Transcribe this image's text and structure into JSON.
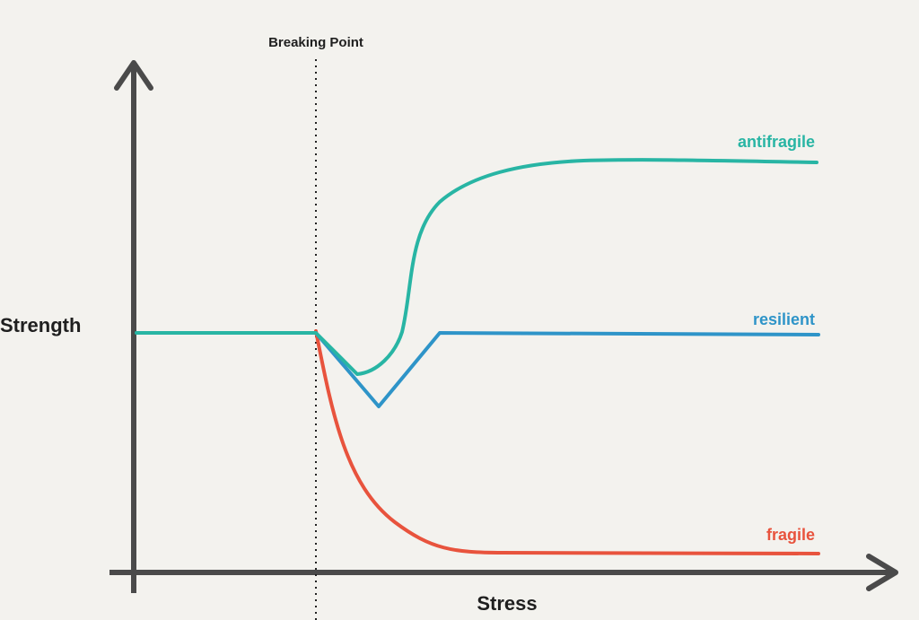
{
  "chart_data": {
    "type": "line",
    "breaking_point_label": "Breaking Point",
    "xlabel": "Stress",
    "ylabel": "Strength",
    "series": [
      {
        "name": "antifragile",
        "color": "#28b5a4",
        "shape": "dip-then-rise-above-baseline"
      },
      {
        "name": "resilient",
        "color": "#2e94c8",
        "shape": "dip-then-return-to-baseline"
      },
      {
        "name": "fragile",
        "color": "#e8533d",
        "shape": "drop-to-near-zero"
      }
    ],
    "grid": false
  }
}
